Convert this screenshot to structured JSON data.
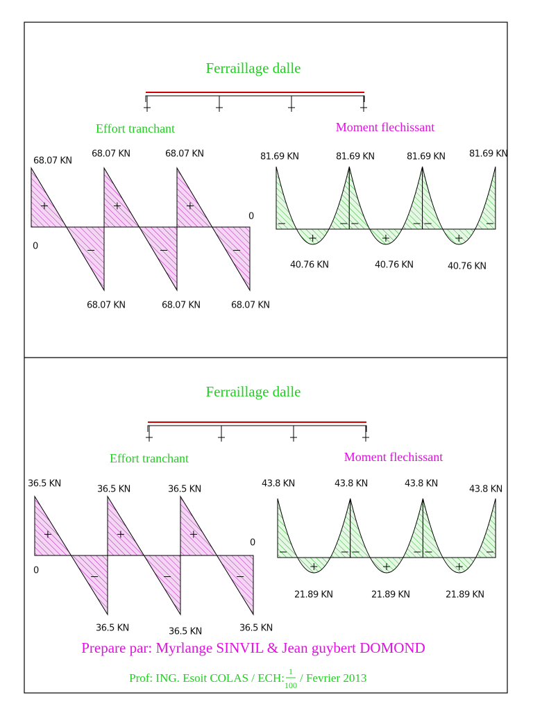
{
  "panels": [
    {
      "title": "Ferraillage dalle",
      "shear": {
        "title": "Effort tranchant",
        "top_labels": [
          "68.07 KN",
          "68.07 KN",
          "68.07 KN"
        ],
        "start_label": "0",
        "end_label": "0",
        "bottom_labels": [
          "68.07 KN",
          "68.07 KN",
          "68.07 KN"
        ]
      },
      "moment": {
        "title": "Moment flechissant",
        "support_labels": [
          "81.69 KN",
          "81.69 KN",
          "81.69 KN",
          "81.69 KN"
        ],
        "span_labels": [
          "40.76 KN",
          "40.76 KN",
          "40.76 KN"
        ]
      }
    },
    {
      "title": "Ferraillage dalle",
      "shear": {
        "title": "Effort tranchant",
        "top_labels": [
          "36.5 KN",
          "36.5 KN",
          "36.5 KN"
        ],
        "start_label": "0",
        "end_label": "0",
        "bottom_labels": [
          "36.5 KN",
          "36.5 KN",
          "36.5 KN"
        ]
      },
      "moment": {
        "title": "Moment flechissant",
        "support_labels": [
          "43.8 KN",
          "43.8 KN",
          "43.8 KN",
          "43.8 KN"
        ],
        "span_labels": [
          "21.89 KN",
          "21.89 KN",
          "21.89 KN"
        ]
      }
    }
  ],
  "footer": {
    "author": "Prepare par: Myrlange SINVIL & Jean guybert DOMOND",
    "prof": "Prof: ING. Esoit COLAS  /  ECH:",
    "scale_num": "1",
    "scale_den": "100",
    "date": "/  Fevrier 2013"
  }
}
